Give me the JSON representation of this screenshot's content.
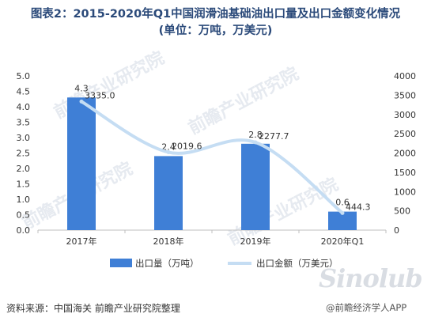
{
  "header": {
    "title_line1": "图表2：2015-2020年Q1中国润滑油基础油出口量及出口金额变化情况",
    "title_line2": "(单位：万吨，万美元)"
  },
  "chart_data": {
    "type": "bar",
    "categories": [
      "2017年",
      "2018年",
      "2019年",
      "2020年Q1"
    ],
    "series": [
      {
        "name": "出口量（万吨）",
        "type": "bar",
        "axis": "left",
        "values": [
          4.3,
          2.4,
          2.8,
          0.6
        ],
        "labels": [
          "4.3",
          "2.4",
          "2.8",
          "0.6"
        ]
      },
      {
        "name": "出口金额（万美元）",
        "type": "line",
        "axis": "right",
        "values": [
          3335.0,
          2019.6,
          2277.7,
          444.3
        ],
        "labels": [
          "3335.0",
          "2019.6",
          "2277.7",
          "444.3"
        ]
      }
    ],
    "y_left": {
      "min": 0,
      "max": 5.0,
      "ticks": [
        "0.0",
        "0.5",
        "1.0",
        "1.5",
        "2.0",
        "2.5",
        "3.0",
        "3.5",
        "4.0",
        "4.5",
        "5.0"
      ]
    },
    "y_right": {
      "min": 0,
      "max": 4000,
      "ticks": [
        "0",
        "500",
        "1000",
        "1500",
        "2000",
        "2500",
        "3000",
        "3500",
        "4000"
      ]
    },
    "colors": {
      "bar": "#3f7fd6",
      "line": "#c5ddf3"
    },
    "legend": "bottom"
  },
  "footer": {
    "source": "资料来源：中国海关 前瞻产业研究院整理",
    "brand": "@前瞻经济学人APP",
    "logo": "Sinolub"
  },
  "watermark": "前瞻产业研究院"
}
